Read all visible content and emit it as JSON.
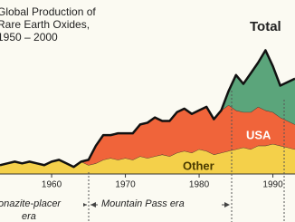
{
  "chart_data": {
    "type": "stacked-area",
    "title_lines": [
      "Global Production of",
      "Rare Earth Oxides,",
      "1950 – 2000"
    ],
    "x": [
      1953,
      1954,
      1955,
      1956,
      1957,
      1958,
      1959,
      1960,
      1961,
      1962,
      1963,
      1964,
      1965,
      1966,
      1967,
      1968,
      1969,
      1970,
      1971,
      1972,
      1973,
      1974,
      1975,
      1976,
      1977,
      1978,
      1979,
      1980,
      1981,
      1982,
      1983,
      1984,
      1985,
      1986,
      1987,
      1988,
      1989,
      1990,
      1991,
      1992,
      1993
    ],
    "series": [
      {
        "name": "Other",
        "color": "#f4d04a",
        "values": [
          5,
          6,
          7,
          6,
          7,
          6,
          5,
          7,
          8,
          6,
          4,
          7,
          5,
          6,
          8,
          9,
          8,
          9,
          8,
          10,
          9,
          10,
          11,
          10,
          12,
          13,
          12,
          14,
          13,
          11,
          12,
          13,
          14,
          15,
          14,
          16,
          16,
          17,
          16,
          15,
          14
        ]
      },
      {
        "name": "USA",
        "color": "#f0643a",
        "values": [
          0,
          0,
          0,
          0,
          0,
          0,
          0,
          0,
          0,
          0,
          0,
          0,
          3,
          10,
          14,
          13,
          15,
          14,
          15,
          18,
          20,
          22,
          19,
          20,
          23,
          24,
          22,
          22,
          25,
          20,
          24,
          26,
          22,
          20,
          21,
          22,
          20,
          18,
          16,
          15,
          14
        ]
      },
      {
        "color": "#5ba57b",
        "values": [
          0,
          0,
          0,
          0,
          0,
          0,
          0,
          0,
          0,
          0,
          0,
          0,
          0,
          0,
          0,
          0,
          0,
          0,
          0,
          0,
          0,
          0,
          0,
          0,
          0,
          0,
          0,
          0,
          0,
          0,
          0,
          8,
          20,
          16,
          22,
          25,
          34,
          26,
          18,
          22,
          26
        ]
      }
    ],
    "xlim": [
      1953,
      1993
    ],
    "ylim": [
      0,
      80
    ],
    "xticks": [
      1960,
      1970,
      1980,
      1990
    ],
    "annotations": [
      "Total",
      "USA",
      "Other"
    ],
    "eras": [
      "onazite-placer",
      "era",
      "Mountain Pass era"
    ]
  }
}
